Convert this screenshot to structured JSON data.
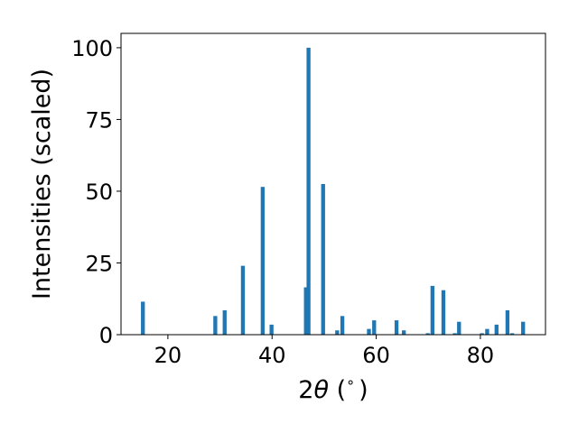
{
  "chart_data": {
    "type": "bar",
    "xlabel_prefix": "2",
    "xlabel_theta": "θ",
    "xlabel_suffix": " (",
    "xlabel_degree": "∘",
    "xlabel_close": ")",
    "ylabel": "Intensities (scaled)",
    "xlim": [
      11,
      92.5
    ],
    "ylim": [
      0,
      105
    ],
    "xticks": [
      20,
      40,
      60,
      80
    ],
    "yticks": [
      0,
      25,
      50,
      75,
      100
    ],
    "bar_color": "#1f77b4",
    "bar_width": 0.75,
    "x": [
      15.2,
      29.1,
      30.9,
      34.4,
      38.2,
      39.9,
      46.5,
      47.0,
      49.8,
      52.5,
      53.5,
      58.6,
      59.6,
      63.9,
      65.3,
      69.9,
      70.8,
      72.9,
      75.1,
      75.9,
      80.3,
      81.3,
      83.1,
      85.2,
      86.1,
      88.2
    ],
    "values": [
      11.5,
      6.5,
      8.5,
      24,
      51.5,
      3.5,
      16.5,
      100,
      52.5,
      1.5,
      6.5,
      2,
      5,
      5,
      1.5,
      0.5,
      17,
      15.5,
      0.5,
      4.5,
      0.5,
      2,
      3.5,
      8.5,
      0.5,
      4.5
    ]
  }
}
